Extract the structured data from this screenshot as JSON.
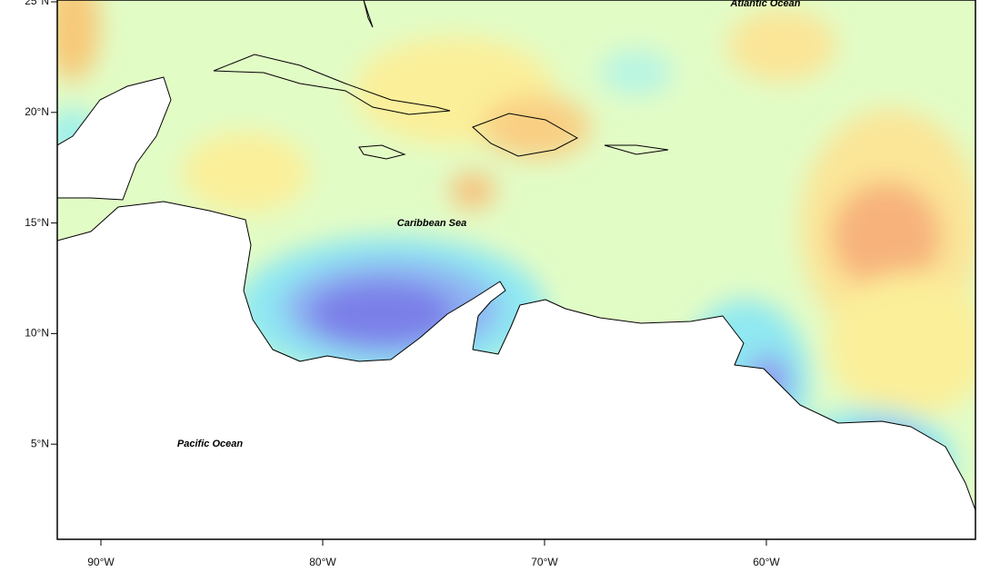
{
  "map": {
    "lat_labels": [
      "25°N",
      "20°N",
      "15°N",
      "10°N",
      "5°N"
    ],
    "lon_labels": [
      "90°W",
      "80°W",
      "70°W",
      "60°W"
    ],
    "place_labels": [
      "Atlantic Ocean",
      "Caribbean Sea",
      "Pacific Ocean"
    ]
  }
}
